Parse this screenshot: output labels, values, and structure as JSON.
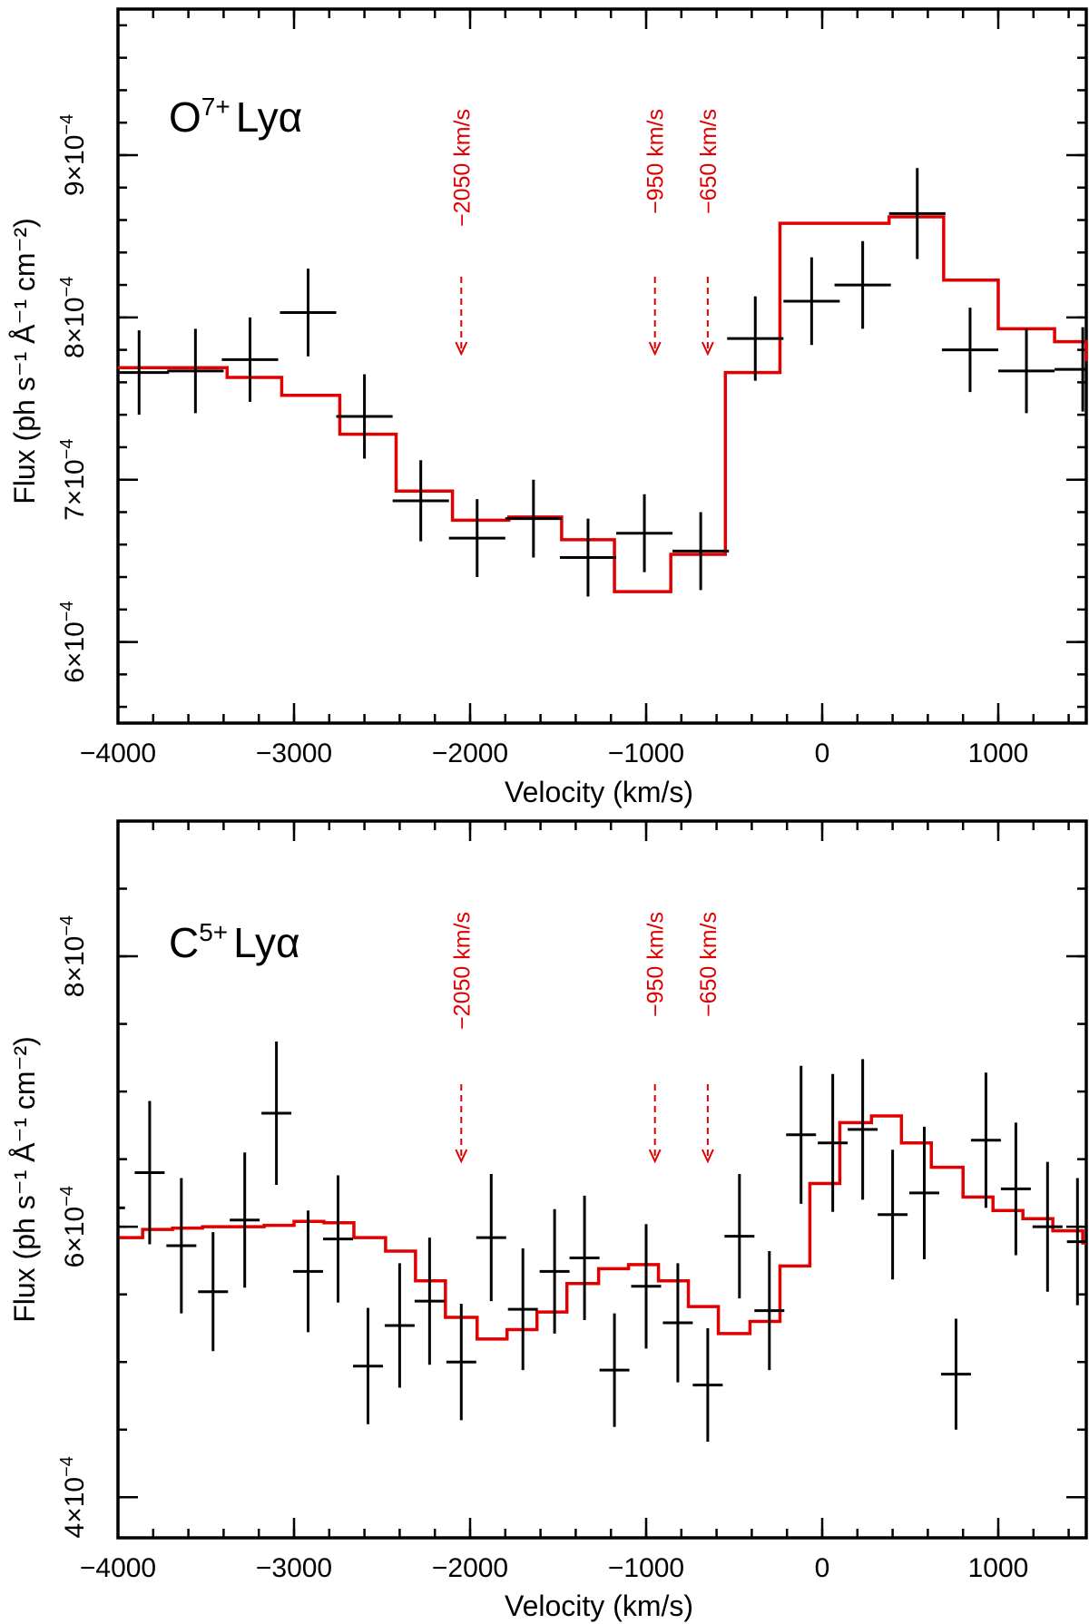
{
  "chart_data": [
    {
      "type": "line",
      "title_ion": "O",
      "title_charge": "7+",
      "title_line": "Lyα",
      "xlabel": "Velocity (km/s)",
      "ylabel": "Flux (ph s⁻¹ Å⁻¹ cm⁻²)",
      "xlim": [
        -4000,
        1500
      ],
      "ylim": [
        0.00055,
        0.00099
      ],
      "x_major_ticks": [
        -4000,
        -3000,
        -2000,
        -1000,
        0,
        1000
      ],
      "x_tick_labels": [
        "−4000",
        "−3000",
        "−2000",
        "−1000",
        "0",
        "1000"
      ],
      "x_minor_step": 200,
      "y_major_ticks": [
        0.0006,
        0.0007,
        0.0008,
        0.0009
      ],
      "y_tick_labels": [
        {
          "mant": "6×10",
          "exp": "−4"
        },
        {
          "mant": "7×10",
          "exp": "−4"
        },
        {
          "mant": "8×10",
          "exp": "−4"
        },
        {
          "mant": "9×10",
          "exp": "−4"
        }
      ],
      "y_minor_step": 2e-05,
      "markers": [
        {
          "velocity": -2050,
          "label": "−2050 km/s"
        },
        {
          "velocity": -950,
          "label": "−950 km/s"
        },
        {
          "velocity": -650,
          "label": "−650 km/s"
        }
      ],
      "data": {
        "name": "data",
        "color": "#000000",
        "x": [
          -3880,
          -3560,
          -3250,
          -2920,
          -2600,
          -2280,
          -1960,
          -1640,
          -1330,
          -1010,
          -690,
          -380,
          -60,
          230,
          540,
          840,
          1160,
          1480
        ],
        "y": [
          0.000766,
          0.000767,
          0.000774,
          0.000803,
          0.000739,
          0.000687,
          0.000664,
          0.000676,
          0.000652,
          0.000667,
          0.000656,
          0.000787,
          0.00081,
          0.00082,
          0.000864,
          0.00078,
          0.000767,
          0.000768
        ],
        "xerr": [
          170,
          160,
          160,
          160,
          160,
          160,
          160,
          160,
          160,
          160,
          160,
          160,
          160,
          160,
          160,
          160,
          160,
          160
        ],
        "yerr": [
          2.6e-05,
          2.6e-05,
          2.6e-05,
          2.7e-05,
          2.6e-05,
          2.5e-05,
          2.4e-05,
          2.4e-05,
          2.4e-05,
          2.4e-05,
          2.4e-05,
          2.6e-05,
          2.7e-05,
          2.7e-05,
          2.8e-05,
          2.6e-05,
          2.6e-05,
          2.6e-05
        ]
      },
      "model": {
        "name": "model",
        "color": "#e00000",
        "x_edges": [
          -4000,
          -3700,
          -3380,
          -3070,
          -2740,
          -2420,
          -2100,
          -1780,
          -1480,
          -1180,
          -860,
          -550,
          -240,
          380,
          690,
          1000,
          1320,
          1500
        ],
        "y": [
          0.000769,
          0.000769,
          0.000763,
          0.000752,
          0.000728,
          0.000693,
          0.000675,
          0.000677,
          0.000663,
          0.000631,
          0.000654,
          0.000766,
          0.000858,
          0.000862,
          0.000823,
          0.000793,
          0.000785,
          0.000773
        ]
      }
    },
    {
      "type": "line",
      "title_ion": "C",
      "title_charge": "5+",
      "title_line": "Lyα",
      "xlabel": "Velocity (km/s)",
      "ylabel": "Flux (ph s⁻¹ Å⁻¹ cm⁻²)",
      "xlim": [
        -4000,
        1500
      ],
      "ylim": [
        0.00037,
        0.0009
      ],
      "x_major_ticks": [
        -4000,
        -3000,
        -2000,
        -1000,
        0,
        1000
      ],
      "x_tick_labels": [
        "−4000",
        "−3000",
        "−2000",
        "−1000",
        "0",
        "1000"
      ],
      "x_minor_step": 200,
      "y_major_ticks": [
        0.0004,
        0.0006,
        0.0008
      ],
      "y_tick_labels": [
        {
          "mant": "4×10",
          "exp": "−4"
        },
        {
          "mant": "6×10",
          "exp": "−4"
        },
        {
          "mant": "8×10",
          "exp": "−4"
        }
      ],
      "y_minor_step": 5e-05,
      "markers": [
        {
          "velocity": -2050,
          "label": "−2050 km/s"
        },
        {
          "velocity": -950,
          "label": "−950 km/s"
        },
        {
          "velocity": -650,
          "label": "−650 km/s"
        }
      ],
      "data": {
        "name": "data",
        "color": "#000000",
        "x": [
          -4000,
          -3820,
          -3640,
          -3460,
          -3280,
          -3100,
          -2920,
          -2750,
          -2580,
          -2400,
          -2230,
          -2050,
          -1880,
          -1700,
          -1520,
          -1350,
          -1180,
          -1000,
          -820,
          -650,
          -470,
          -300,
          -120,
          60,
          230,
          400,
          580,
          760,
          930,
          1100,
          1280,
          1450
        ],
        "y": [
          0.000614,
          0.00064,
          0.000586,
          0.000552,
          0.000605,
          0.000684,
          0.000567,
          0.000591,
          0.000497,
          0.000527,
          0.000545,
          0.0005,
          0.000592,
          0.000539,
          0.000567,
          0.000577,
          0.000494,
          0.000556,
          0.000529,
          0.000483,
          0.000593,
          0.000538,
          0.000668,
          0.000662,
          0.000672,
          0.000609,
          0.000625,
          0.000491,
          0.000664,
          0.000628,
          0.0006,
          0.000589
        ],
        "xerr": [
          40,
          85,
          85,
          85,
          85,
          85,
          85,
          85,
          85,
          85,
          85,
          85,
          85,
          85,
          85,
          85,
          85,
          85,
          85,
          85,
          85,
          85,
          85,
          85,
          85,
          85,
          85,
          85,
          85,
          85,
          85,
          60
        ],
        "yerr": [
          4.7e-05,
          5.3e-05,
          5e-05,
          4.4e-05,
          5e-05,
          5.3e-05,
          4.5e-05,
          4.7e-05,
          4.3e-05,
          4.6e-05,
          4.7e-05,
          4.3e-05,
          4.7e-05,
          4.5e-05,
          4.6e-05,
          4.6e-05,
          4.2e-05,
          4.6e-05,
          4.4e-05,
          4.2e-05,
          4.6e-05,
          4.4e-05,
          5.1e-05,
          5.1e-05,
          5.2e-05,
          4.8e-05,
          4.9e-05,
          4.1e-05,
          5e-05,
          4.9e-05,
          4.8e-05,
          4.7e-05
        ]
      },
      "model": {
        "name": "model",
        "color": "#e00000",
        "x_edges": [
          -4000,
          -3860,
          -3690,
          -3520,
          -3350,
          -3170,
          -3000,
          -2830,
          -2660,
          -2480,
          -2310,
          -2140,
          -1960,
          -1790,
          -1620,
          -1450,
          -1270,
          -1100,
          -930,
          -760,
          -590,
          -410,
          -240,
          -70,
          100,
          280,
          450,
          620,
          800,
          970,
          1140,
          1310,
          1480,
          1500
        ],
        "y": [
          0.000592,
          0.000598,
          0.000599,
          0.0006,
          0.0006,
          0.000601,
          0.000604,
          0.000603,
          0.000592,
          0.000582,
          0.00056,
          0.000533,
          0.000517,
          0.000524,
          0.000537,
          0.000558,
          0.000569,
          0.000572,
          0.00056,
          0.000541,
          0.000521,
          0.00053,
          0.000571,
          0.000632,
          0.000677,
          0.000682,
          0.000662,
          0.000644,
          0.000622,
          0.000612,
          0.000606,
          0.000597,
          0.000588,
          0.000588
        ]
      }
    }
  ]
}
